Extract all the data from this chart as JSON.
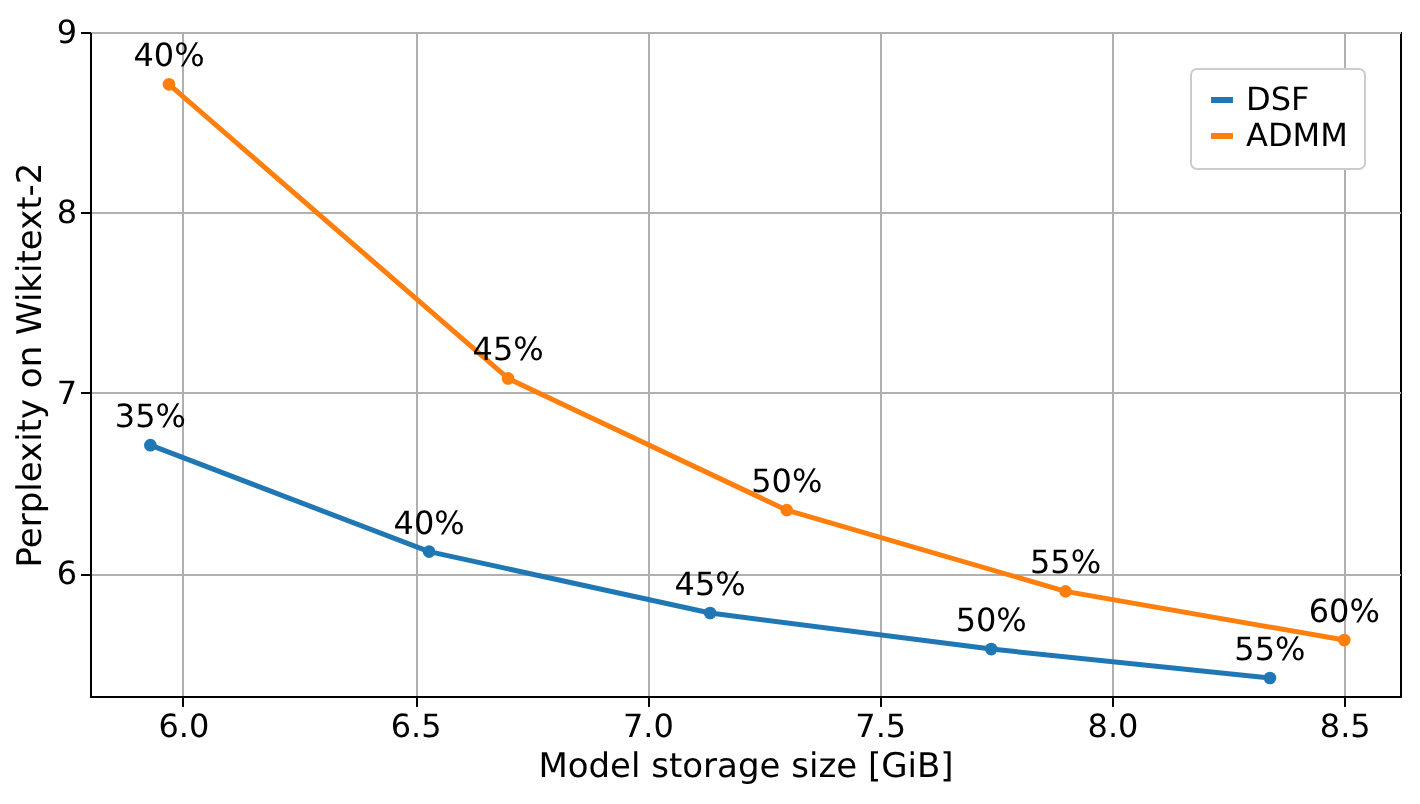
{
  "chart_data": {
    "type": "line",
    "xlabel": "Model storage size [GiB]",
    "ylabel": "Perplexity on Wikitext-2",
    "xlim": [
      5.8,
      8.62
    ],
    "ylim": [
      5.32,
      9
    ],
    "xticks": [
      {
        "value": 6,
        "label": "6.0"
      },
      6.5,
      {
        "value": 7,
        "label": "7.0"
      },
      7.5,
      {
        "value": 8,
        "label": "8.0"
      },
      8.5
    ],
    "yticks": [
      6,
      7,
      8,
      9
    ],
    "grid": true,
    "legend": "top right",
    "marker": "circle",
    "line_style": "solid",
    "series": [
      {
        "name": "DSF",
        "color": "#1f77b4",
        "x": [
          5.93,
          6.53,
          7.135,
          7.74,
          8.34
        ],
        "values": [
          6.71,
          6.12,
          5.78,
          5.58,
          5.42
        ]
      },
      {
        "name": "ADMM",
        "color": "#ff7f0e",
        "x": [
          5.97,
          6.7,
          7.3,
          7.9,
          8.5
        ],
        "values": [
          8.71,
          7.08,
          6.35,
          5.9,
          5.63
        ]
      }
    ],
    "annotations": [
      {
        "text": "35%",
        "x": 5.93,
        "y": 6.71
      },
      {
        "text": "40%",
        "x": 6.53,
        "y": 6.12
      },
      {
        "text": "45%",
        "x": 7.135,
        "y": 5.78
      },
      {
        "text": "50%",
        "x": 7.74,
        "y": 5.58
      },
      {
        "text": "55%",
        "x": 8.34,
        "y": 5.42
      },
      {
        "text": "40%",
        "x": 5.97,
        "y": 8.71
      },
      {
        "text": "45%",
        "x": 6.7,
        "y": 7.08
      },
      {
        "text": "50%",
        "x": 7.3,
        "y": 6.35
      },
      {
        "text": "55%",
        "x": 7.9,
        "y": 5.9
      },
      {
        "text": "60%",
        "x": 8.5,
        "y": 5.63
      }
    ]
  }
}
